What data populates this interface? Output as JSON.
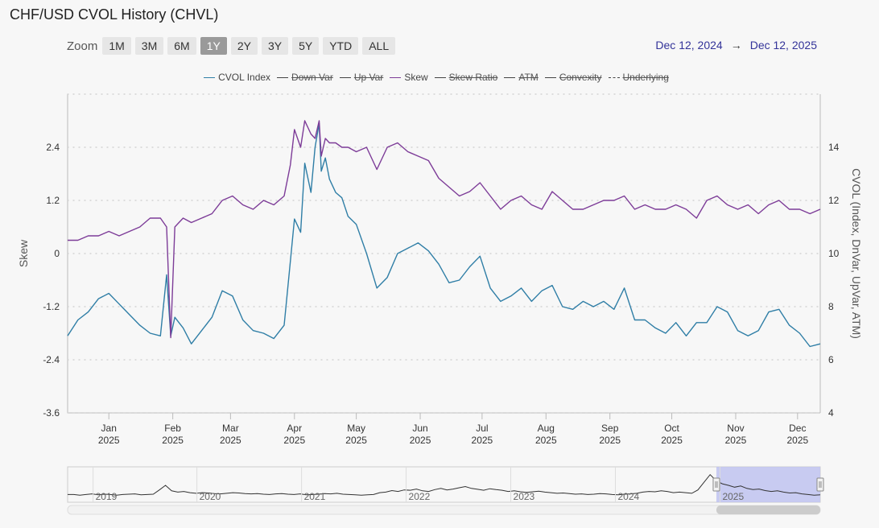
{
  "title": "CHF/USD CVOL History (CHVL)",
  "zoom": {
    "label": "Zoom",
    "buttons": [
      "1M",
      "3M",
      "6M",
      "1Y",
      "2Y",
      "3Y",
      "5Y",
      "YTD",
      "ALL"
    ],
    "active": "1Y"
  },
  "date_range": {
    "from": "Dec 12, 2024",
    "arrow": "→",
    "to": "Dec 12, 2025"
  },
  "colors": {
    "cvol": "#2f7ea6",
    "skew": "#7d3c98",
    "grid": "#cccccc",
    "nav_fill": "#bfc3f0",
    "nav_line": "#333333"
  },
  "legend": [
    {
      "label": "CVOL Index",
      "hidden": false,
      "color": "#2f7ea6",
      "dashed": false
    },
    {
      "label": "Down Var",
      "hidden": true,
      "color": "#444444",
      "dashed": false
    },
    {
      "label": "Up Var",
      "hidden": true,
      "color": "#444444",
      "dashed": false
    },
    {
      "label": "Skew",
      "hidden": false,
      "color": "#7d3c98",
      "dashed": false
    },
    {
      "label": "Skew Ratio",
      "hidden": true,
      "color": "#444444",
      "dashed": false
    },
    {
      "label": "ATM",
      "hidden": true,
      "color": "#444444",
      "dashed": false
    },
    {
      "label": "Convexity",
      "hidden": true,
      "color": "#444444",
      "dashed": false
    },
    {
      "label": "Underlying",
      "hidden": true,
      "color": "#444444",
      "dashed": true
    }
  ],
  "chart_data": {
    "type": "line",
    "title": "CHF/USD CVOL History (CHVL)",
    "xlabel": "",
    "y_left": {
      "label": "Skew",
      "ticks": [
        "2.4",
        "1.2",
        "0",
        "-1.2",
        "-2.4",
        "-3.6"
      ],
      "tick_values": [
        2.4,
        1.2,
        0,
        -1.2,
        -2.4,
        -3.6
      ],
      "range": [
        -3.6,
        3.6
      ]
    },
    "y_right": {
      "label": "CVOL (Index, DnVar, UpVar, ATM)",
      "ticks": [
        "14",
        "12",
        "10",
        "8",
        "6",
        "4"
      ],
      "tick_values": [
        14,
        12,
        10,
        8,
        6,
        4
      ],
      "range": [
        4,
        16
      ]
    },
    "x_range": [
      0,
      365
    ],
    "x_ticks": [
      {
        "month": "Jan",
        "year": "2025",
        "day": 20
      },
      {
        "month": "Feb",
        "year": "2025",
        "day": 51
      },
      {
        "month": "Mar",
        "year": "2025",
        "day": 79
      },
      {
        "month": "Apr",
        "year": "2025",
        "day": 110
      },
      {
        "month": "May",
        "year": "2025",
        "day": 140
      },
      {
        "month": "Jun",
        "year": "2025",
        "day": 171
      },
      {
        "month": "Jul",
        "year": "2025",
        "day": 201
      },
      {
        "month": "Aug",
        "year": "2025",
        "day": 232
      },
      {
        "month": "Sep",
        "year": "2025",
        "day": 263
      },
      {
        "month": "Oct",
        "year": "2025",
        "day": 293
      },
      {
        "month": "Nov",
        "year": "2025",
        "day": 324
      },
      {
        "month": "Dec",
        "year": "2025",
        "day": 354
      }
    ],
    "series": [
      {
        "name": "CVOL Index",
        "axis": "right",
        "x": [
          0,
          5,
          10,
          15,
          20,
          25,
          30,
          35,
          40,
          45,
          48,
          50,
          52,
          54,
          56,
          60,
          65,
          70,
          75,
          80,
          85,
          90,
          95,
          100,
          105,
          108,
          110,
          113,
          115,
          118,
          120,
          122,
          123,
          125,
          127,
          130,
          133,
          136,
          140,
          145,
          150,
          155,
          160,
          165,
          170,
          175,
          180,
          185,
          190,
          195,
          200,
          205,
          210,
          215,
          220,
          225,
          230,
          235,
          240,
          245,
          250,
          255,
          260,
          265,
          270,
          275,
          280,
          285,
          290,
          295,
          300,
          305,
          310,
          315,
          320,
          325,
          330,
          335,
          340,
          345,
          350,
          355,
          360,
          365
        ],
        "values": [
          6.9,
          7.5,
          7.8,
          8.3,
          8.5,
          8.1,
          7.7,
          7.3,
          7.0,
          6.9,
          9.2,
          6.9,
          7.6,
          7.4,
          7.2,
          6.6,
          7.1,
          7.6,
          8.6,
          8.4,
          7.5,
          7.1,
          7.0,
          6.8,
          7.3,
          9.7,
          11.3,
          10.8,
          13.4,
          12.3,
          14.0,
          14.9,
          13.1,
          13.6,
          12.8,
          12.3,
          12.1,
          11.4,
          11.1,
          10.0,
          8.7,
          9.1,
          10.0,
          10.2,
          10.4,
          10.1,
          9.6,
          8.9,
          9.0,
          9.5,
          9.9,
          8.7,
          8.2,
          8.4,
          8.7,
          8.2,
          8.6,
          8.8,
          8.0,
          7.9,
          8.2,
          8.0,
          8.2,
          7.9,
          8.7,
          7.5,
          7.5,
          7.2,
          7.0,
          7.4,
          6.9,
          7.4,
          7.4,
          8.0,
          7.8,
          7.1,
          6.9,
          7.1,
          7.8,
          7.9,
          7.3,
          7.0,
          6.5,
          6.6
        ]
      },
      {
        "name": "Skew",
        "axis": "left",
        "x": [
          0,
          5,
          10,
          15,
          20,
          25,
          30,
          35,
          40,
          45,
          48,
          50,
          52,
          54,
          56,
          60,
          65,
          70,
          75,
          80,
          85,
          90,
          95,
          100,
          105,
          108,
          110,
          113,
          115,
          118,
          120,
          122,
          123,
          125,
          127,
          130,
          133,
          136,
          140,
          145,
          150,
          155,
          160,
          165,
          170,
          175,
          180,
          185,
          190,
          195,
          200,
          205,
          210,
          215,
          220,
          225,
          230,
          235,
          240,
          245,
          250,
          255,
          260,
          265,
          270,
          275,
          280,
          285,
          290,
          295,
          300,
          305,
          310,
          315,
          320,
          325,
          330,
          335,
          340,
          345,
          350,
          355,
          360,
          365
        ],
        "values": [
          0.3,
          0.3,
          0.4,
          0.4,
          0.5,
          0.4,
          0.5,
          0.6,
          0.8,
          0.8,
          0.6,
          -1.9,
          0.6,
          0.7,
          0.8,
          0.7,
          0.8,
          0.9,
          1.2,
          1.3,
          1.1,
          1.0,
          1.2,
          1.1,
          1.3,
          2.0,
          2.8,
          2.4,
          3.0,
          2.7,
          2.6,
          3.0,
          2.2,
          2.6,
          2.5,
          2.5,
          2.4,
          2.4,
          2.3,
          2.4,
          1.9,
          2.4,
          2.5,
          2.3,
          2.2,
          2.1,
          1.7,
          1.5,
          1.3,
          1.4,
          1.6,
          1.3,
          1.0,
          1.2,
          1.3,
          1.1,
          1.0,
          1.4,
          1.2,
          1.0,
          1.0,
          1.1,
          1.2,
          1.2,
          1.3,
          1.0,
          1.1,
          1.0,
          1.0,
          1.1,
          1.0,
          0.8,
          1.2,
          1.3,
          1.1,
          1.0,
          1.1,
          0.9,
          1.1,
          1.2,
          1.0,
          1.0,
          0.9,
          1.0
        ]
      }
    ],
    "navigator": {
      "labels": [
        "2019",
        "2020",
        "2021",
        "2022",
        "2023",
        "2024",
        "2025"
      ],
      "selected_label": "2025",
      "values": [
        7,
        7,
        6.8,
        7,
        7.2,
        6.9,
        7.1,
        7,
        6.8,
        7,
        7.1,
        7.2,
        6.9,
        7,
        7.1,
        8.5,
        10,
        8.2,
        7.8,
        8,
        7.6,
        7.4,
        7.6,
        7.5,
        7.3,
        7.2,
        7.4,
        7.6,
        7.5,
        7.3,
        7.2,
        7.3,
        7.1,
        7,
        7.2,
        7.3,
        7.1,
        7.0,
        7.2,
        6.9,
        7.0,
        7.1,
        7.3,
        7.2,
        7.4,
        7.1,
        7.0,
        6.9,
        6.8,
        6.9,
        7.0,
        7.6,
        7.8,
        8.3,
        8.0,
        8.5,
        8.4,
        8.8,
        8.2,
        8.0,
        8.6,
        9.0,
        8.5,
        8.8,
        9.2,
        9.6,
        9.0,
        8.7,
        8.4,
        8.9,
        8.6,
        8.4,
        8.0,
        8.2,
        7.9,
        7.7,
        7.9,
        8.1,
        7.8,
        7.6,
        7.4,
        7.5,
        7.3,
        7.1,
        7.2,
        7.0,
        7.1,
        7.3,
        7.2,
        7.0,
        6.9,
        7.1,
        7.2,
        7.4,
        7.8,
        8.0,
        7.9,
        8.2,
        8.0,
        7.6,
        7.8,
        7.6,
        7.4,
        8.5,
        11,
        13.5,
        11.5,
        10.5,
        10,
        9.4,
        9.8,
        9.0,
        8.6,
        8.8,
        8.3,
        8.0,
        8.2,
        7.8,
        7.5,
        7.6,
        7.2,
        7.0,
        6.8,
        6.9
      ],
      "y_range": [
        5,
        15
      ]
    }
  }
}
